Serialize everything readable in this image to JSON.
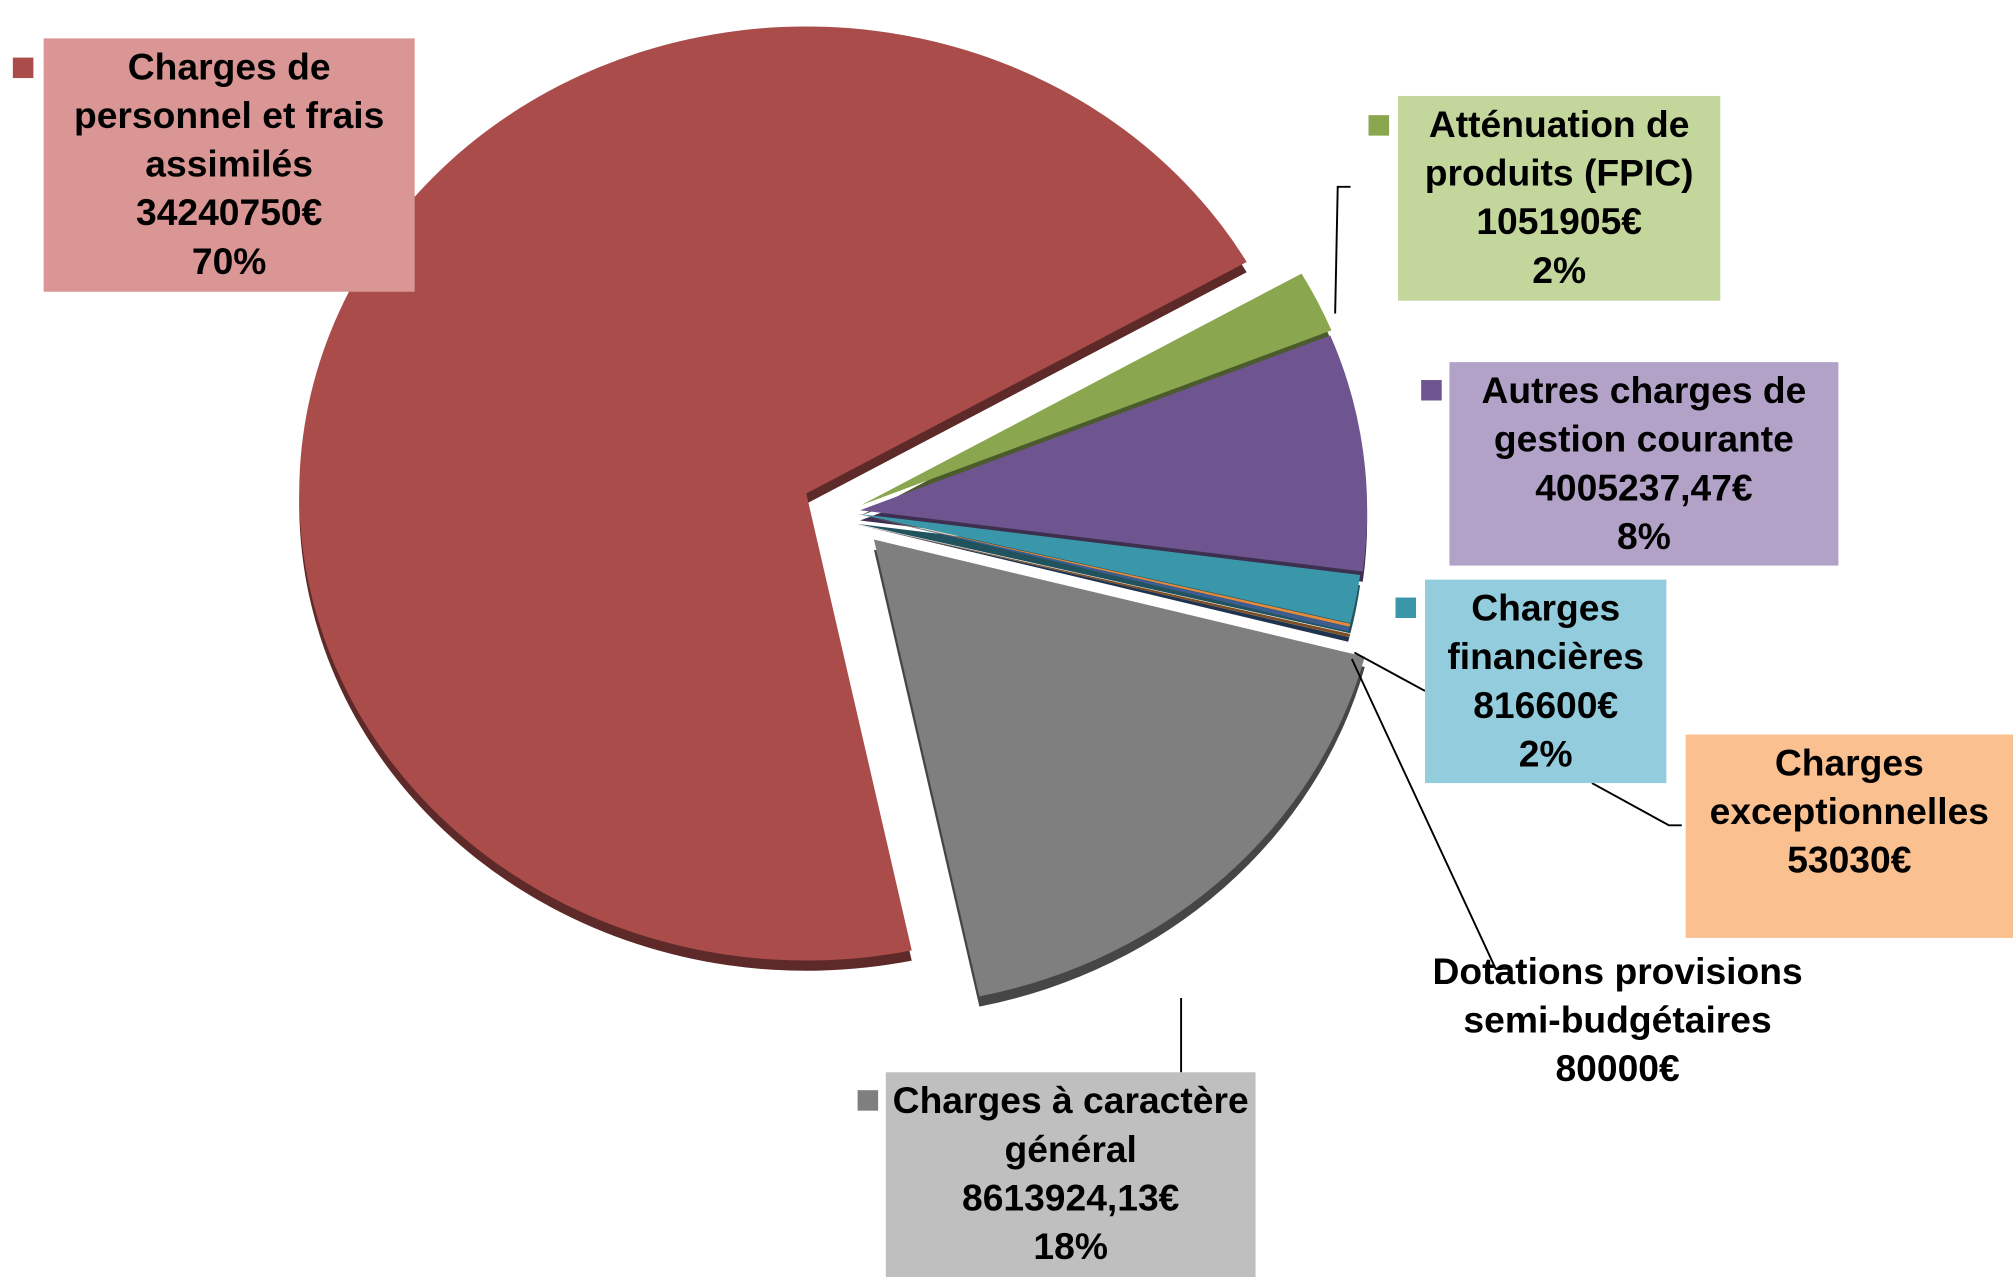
{
  "chart_data": {
    "type": "pie",
    "categories": [
      "Charges de personnel et frais assimilés",
      "Atténuation de produits (FPIC)",
      "Autres charges de gestion courante",
      "Charges financières",
      "Charges exceptionnelles",
      "Dotations provisions semi-budgétaires",
      "Charges à caractère général"
    ],
    "values": [
      34240750,
      1051905,
      4005237.47,
      816600,
      53030,
      80000,
      8613924.13
    ],
    "value_labels": [
      "34240750€",
      "1051905€",
      "4005237,47€",
      "816600€",
      "53030€",
      "80000€",
      "8613924,13€"
    ],
    "percent_labels": [
      "70%",
      "2%",
      "8%",
      "2%",
      null,
      null,
      "18%"
    ],
    "colors": [
      "#a94c4a",
      "#8aa64e",
      "#6e5590",
      "#3a97a9",
      "#e58a3c",
      "#3b5d8f",
      "#7f7f7f"
    ],
    "label_colors": [
      "#d99694",
      "#c3d69b",
      "#b2a2c7",
      "#93cddd",
      "#fac090",
      null,
      "#bfbfbf"
    ]
  }
}
